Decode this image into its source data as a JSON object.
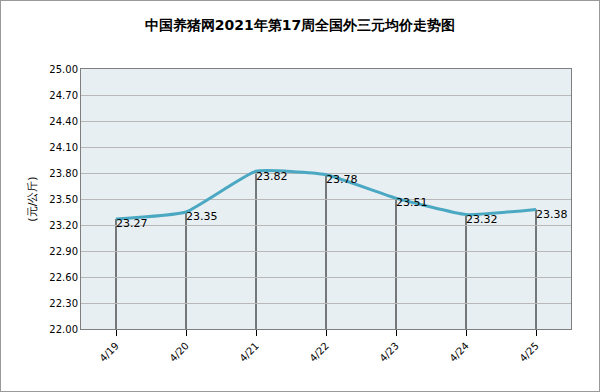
{
  "chart_data": {
    "type": "line",
    "title": "中国养猪网2021年第17周全国外三元均价走势图",
    "y_label": "(元/公斤)",
    "categories": [
      "4/19",
      "4/20",
      "4/21",
      "4/22",
      "4/23",
      "4/24",
      "4/25"
    ],
    "values": [
      23.27,
      23.35,
      23.82,
      23.78,
      23.51,
      23.32,
      23.38
    ],
    "color": "#4aa8c2",
    "ylim": [
      22.0,
      25.0
    ],
    "yticks": [
      {
        "value": 22.0,
        "label": "22.00"
      },
      {
        "value": 22.3,
        "label": "22.30"
      },
      {
        "value": 22.6,
        "label": "22.60"
      },
      {
        "value": 22.9,
        "label": "22.90"
      },
      {
        "value": 23.2,
        "label": "23.20"
      },
      {
        "value": 23.5,
        "label": "23.50"
      },
      {
        "value": 23.8,
        "label": "23.80"
      },
      {
        "value": 24.1,
        "label": "24.10"
      },
      {
        "value": 24.4,
        "label": "24.40"
      },
      {
        "value": 24.7,
        "label": "24.70"
      },
      {
        "value": 25.0,
        "label": "25.00"
      }
    ],
    "grid": true,
    "data_labels": true
  }
}
